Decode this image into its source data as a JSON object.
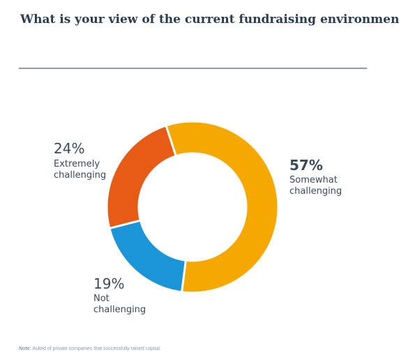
{
  "title": "What is your view of the current fundraising environment?",
  "note": {
    "label": "Note:",
    "text": "Asked of private companies that successfully raised capital."
  },
  "chart_data": {
    "type": "pie",
    "donut": true,
    "title": "What is your view of the current fundraising environment?",
    "slices": [
      {
        "label": "Somewhat\nchallenging",
        "value": 57,
        "value_label": "57%",
        "color": "#f5a800"
      },
      {
        "label": "Not\nchallenging",
        "value": 19,
        "value_label": "19%",
        "color": "#1b95d8"
      },
      {
        "label": "Extremely\nchallenging",
        "value": 24,
        "value_label": "24%",
        "color": "#e65c17"
      }
    ]
  }
}
